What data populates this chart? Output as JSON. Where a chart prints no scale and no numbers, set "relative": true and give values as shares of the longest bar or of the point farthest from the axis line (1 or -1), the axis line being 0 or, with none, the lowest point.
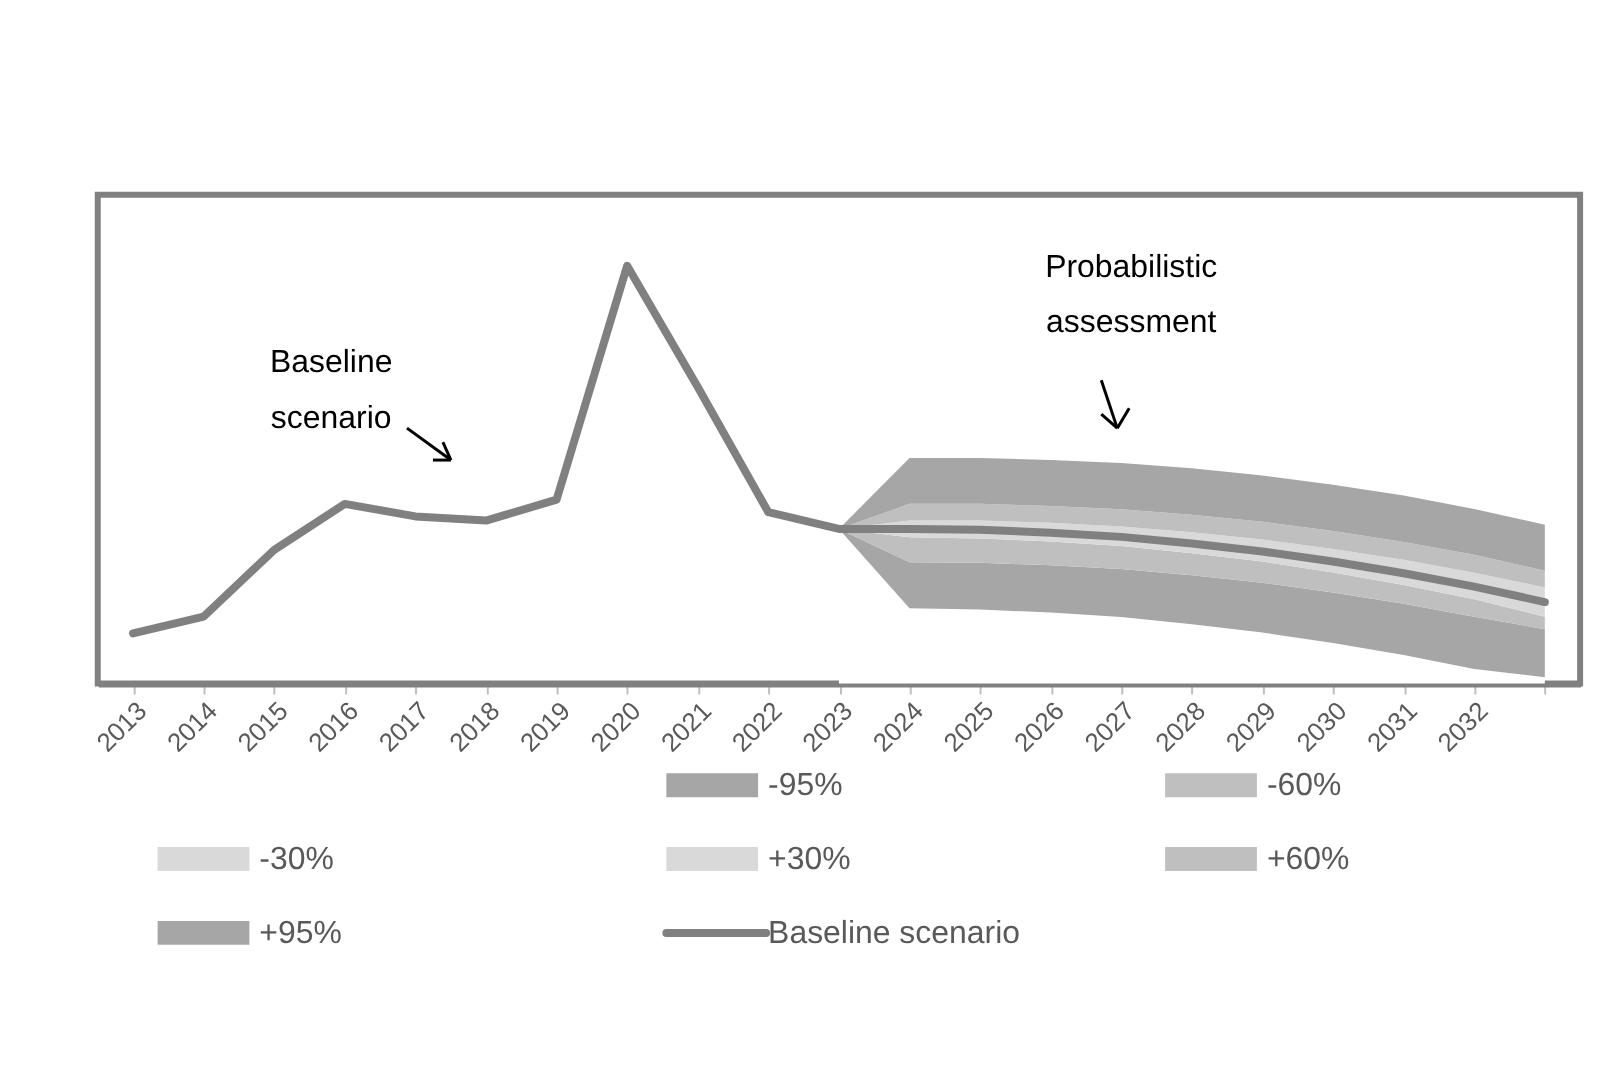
{
  "chart_data": {
    "type": "line",
    "relative": true,
    "stacked": true,
    "legend": "bottom",
    "grid": false,
    "categories": [
      "2013",
      "2014",
      "2015",
      "2016",
      "2017",
      "2018",
      "2019",
      "2020",
      "2021",
      "2022",
      "2023",
      "2024",
      "2025",
      "2026",
      "2027",
      "2028",
      "2029",
      "2030",
      "2031",
      "2032",
      null
    ],
    "annotations": [
      "Baseline scenario",
      "Probabilistic assessment"
    ],
    "series": [
      {
        "type": "area",
        "color": "#ffffff",
        "values": [
          null,
          null,
          null,
          null,
          null,
          null,
          null,
          null,
          null,
          null,
          0.37,
          0.18,
          0.177,
          0.17,
          0.159,
          0.142,
          0.122,
          0.097,
          0.068,
          0.035,
          0.015
        ]
      },
      {
        "name": "-95%",
        "type": "area",
        "color": "#a6a6a6",
        "values": [
          null,
          null,
          null,
          null,
          null,
          null,
          null,
          null,
          null,
          null,
          0,
          0.11,
          0.112,
          0.113,
          0.115,
          0.117,
          0.119,
          0.121,
          0.123,
          0.125,
          0.115
        ]
      },
      {
        "name": "-60%",
        "type": "area",
        "color": "#bfbfbf",
        "values": [
          null,
          null,
          null,
          null,
          null,
          null,
          null,
          null,
          null,
          null,
          0,
          0.06,
          0.058,
          0.057,
          0.055,
          0.053,
          0.051,
          0.048,
          0.045,
          0.042,
          0.03
        ]
      },
      {
        "name": "-30%",
        "type": "area",
        "color": "#d9d9d9",
        "values": [
          null,
          null,
          null,
          null,
          null,
          null,
          null,
          null,
          null,
          null,
          0,
          0.02,
          0.021,
          0.021,
          0.022,
          0.023,
          0.024,
          0.026,
          0.028,
          0.03,
          0.035
        ]
      },
      {
        "name": "+30%",
        "type": "area",
        "color": "#d9d9d9",
        "values": [
          null,
          null,
          null,
          null,
          null,
          null,
          null,
          null,
          null,
          null,
          0,
          0.02,
          0.022,
          0.024,
          0.025,
          0.027,
          0.029,
          0.03,
          0.032,
          0.033,
          0.035
        ]
      },
      {
        "name": "+60%",
        "type": "area",
        "color": "#bfbfbf",
        "values": [
          null,
          null,
          null,
          null,
          null,
          null,
          null,
          null,
          null,
          null,
          0,
          0.04,
          0.04,
          0.04,
          0.041,
          0.042,
          0.042,
          0.043,
          0.043,
          0.043,
          0.04
        ]
      },
      {
        "name": "+95%",
        "type": "area",
        "color": "#a6a6a6",
        "values": [
          null,
          null,
          null,
          null,
          null,
          null,
          null,
          null,
          null,
          null,
          0,
          0.11,
          0.11,
          0.11,
          0.111,
          0.111,
          0.111,
          0.111,
          0.111,
          0.11,
          0.11
        ]
      },
      {
        "name": "Baseline scenario",
        "type": "line",
        "color": "#808080",
        "values": [
          0.12,
          0.16,
          0.32,
          0.43,
          0.4,
          0.39,
          0.44,
          1.0,
          0.71,
          0.41,
          0.37,
          0.37,
          0.368,
          0.361,
          0.351,
          0.335,
          0.316,
          0.292,
          0.264,
          0.232,
          0.195
        ]
      }
    ]
  }
}
